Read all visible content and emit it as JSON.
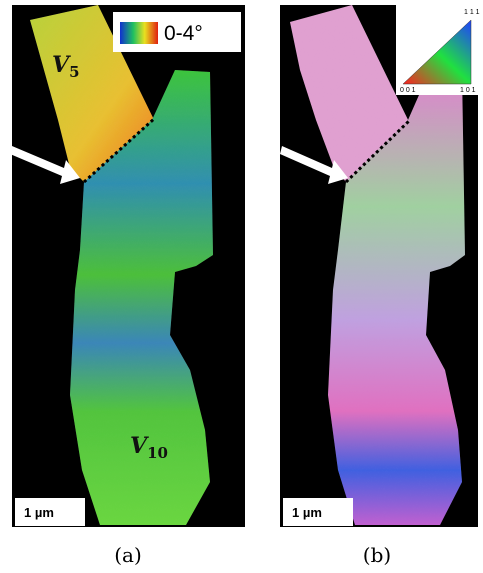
{
  "panels": [
    {
      "caption": "(a)",
      "grain_top": {
        "letter": "V",
        "subscript": "5"
      },
      "grain_bottom": {
        "letter": "V",
        "subscript": "10"
      },
      "legend": "0-4°",
      "scale_bar": "1 µm"
    },
    {
      "caption": "(b)",
      "legend_triangle": {
        "top": "1 1 1",
        "left": "0 0 1",
        "right": "1 0 1"
      },
      "scale_bar": "1 µm"
    }
  ]
}
